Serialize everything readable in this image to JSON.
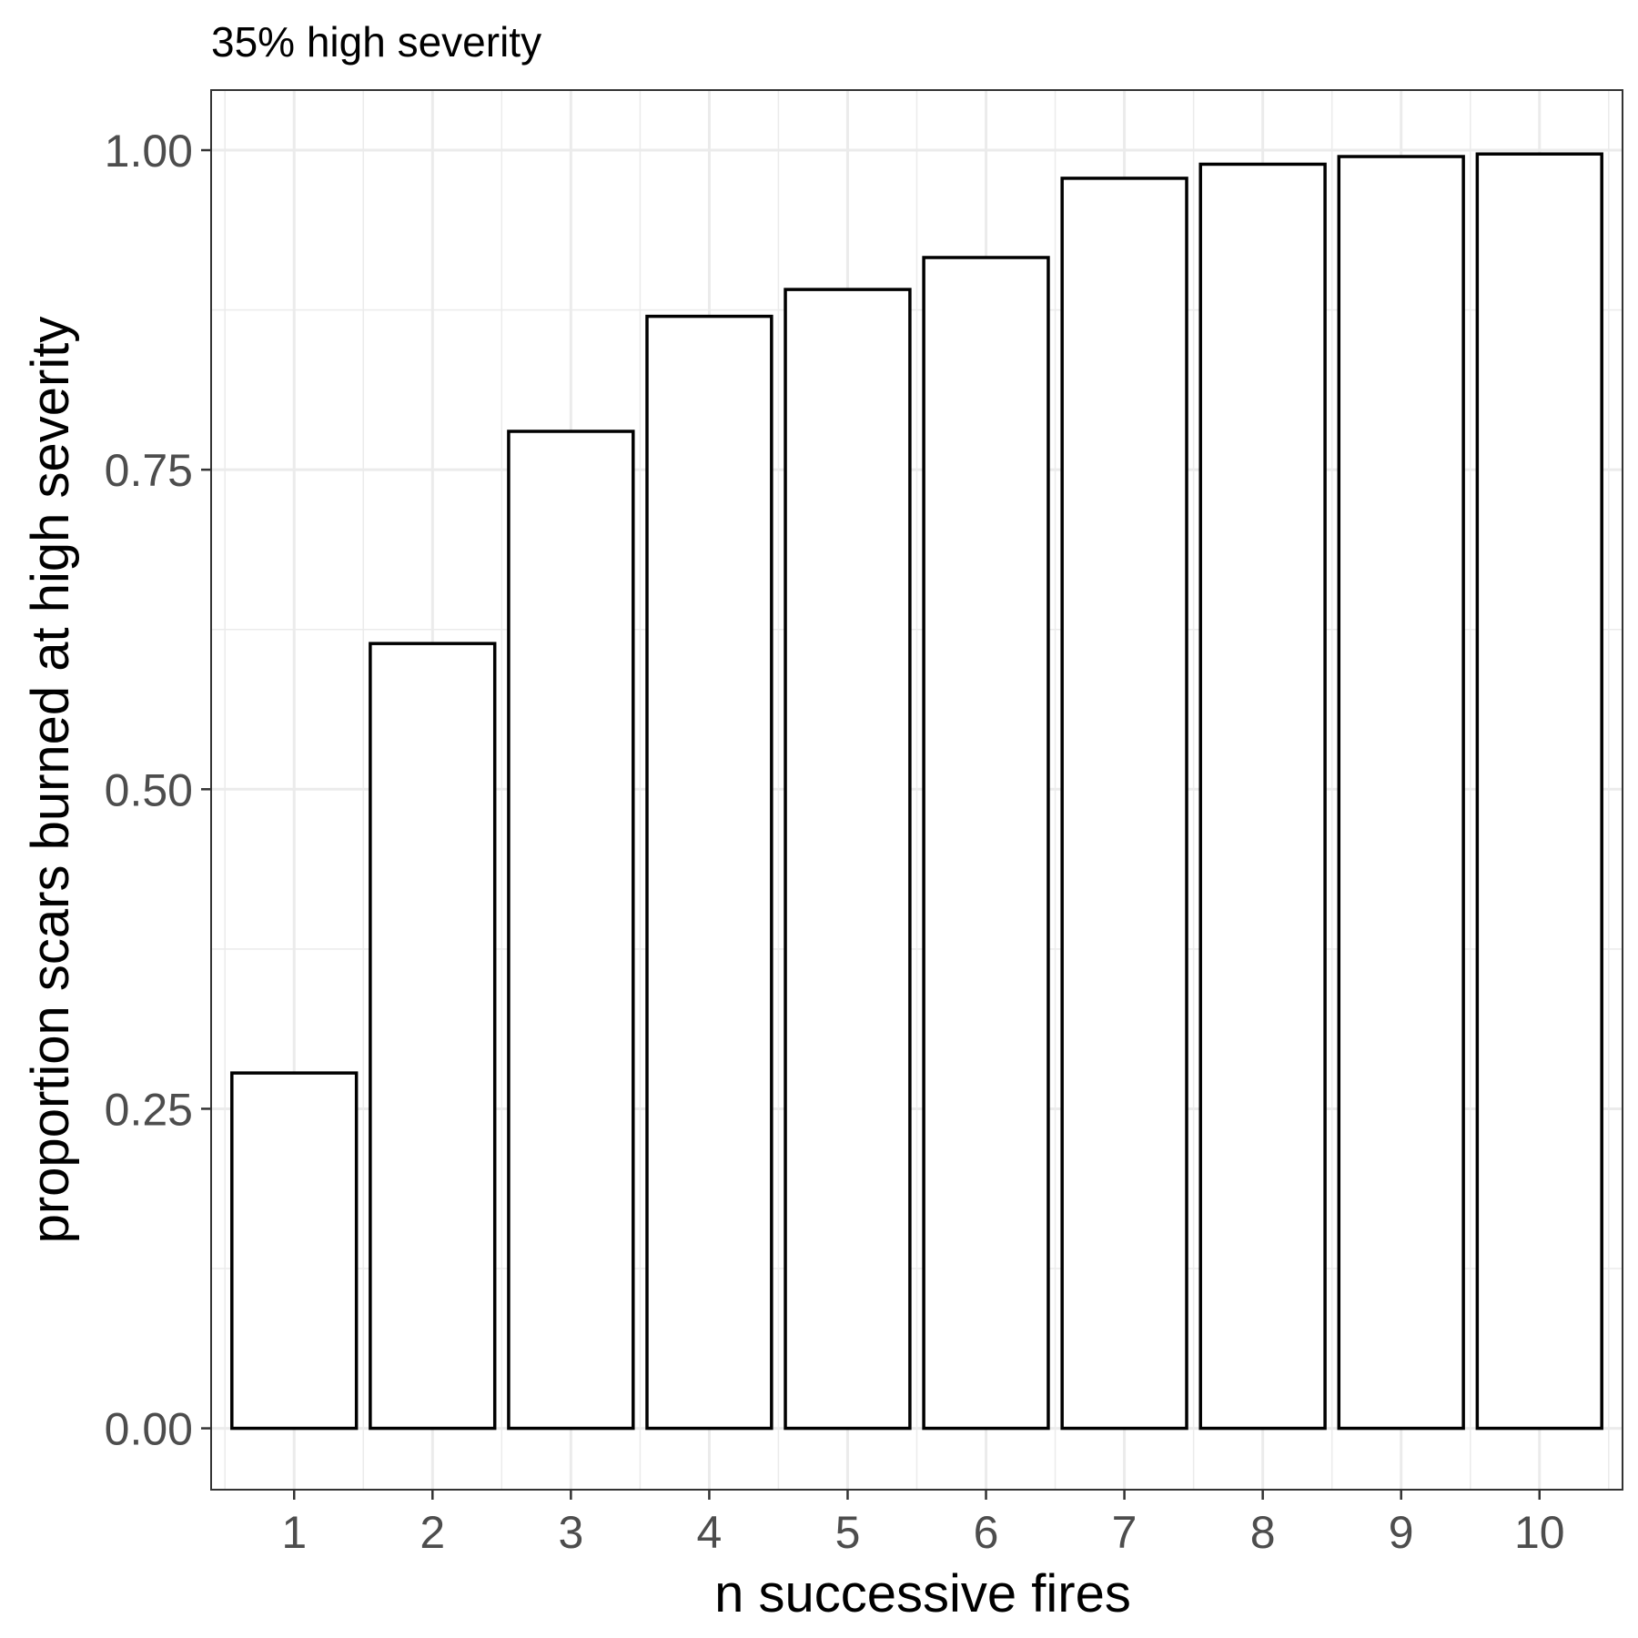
{
  "chart_data": {
    "type": "bar",
    "title": "35% high severity",
    "xlabel": "n successive fires",
    "ylabel": "proportion scars burned at high severity",
    "categories": [
      "1",
      "2",
      "3",
      "4",
      "5",
      "6",
      "7",
      "8",
      "9",
      "10"
    ],
    "values": [
      0.278,
      0.614,
      0.78,
      0.87,
      0.891,
      0.916,
      0.978,
      0.989,
      0.995,
      0.997
    ],
    "yticks": [
      "0.00",
      "0.25",
      "0.50",
      "0.75",
      "1.00"
    ],
    "ylim": [
      -0.048,
      1.047
    ],
    "grid": true,
    "legend": "none",
    "bar_fill": "#ffffff",
    "bar_outline": "#000000"
  }
}
